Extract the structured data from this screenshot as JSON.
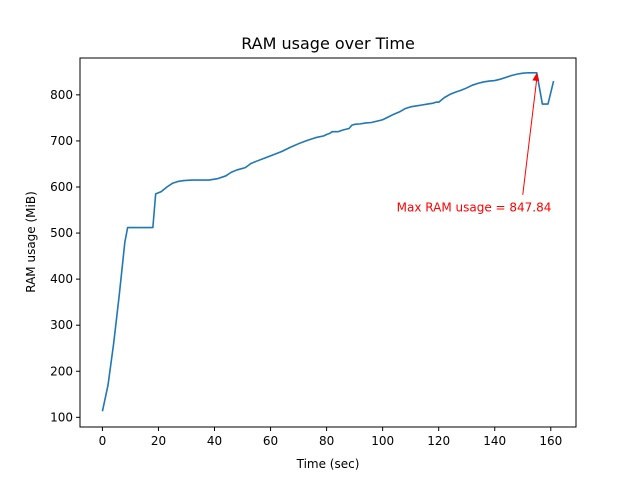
{
  "chart_data": {
    "type": "line",
    "title": "RAM usage over Time",
    "xlabel": "Time (sec)",
    "ylabel": "RAM usage (MiB)",
    "xlim": [
      -8,
      169
    ],
    "ylim": [
      79,
      880
    ],
    "xticks": [
      0,
      20,
      40,
      60,
      80,
      100,
      120,
      140,
      160
    ],
    "yticks": [
      100,
      200,
      300,
      400,
      500,
      600,
      700,
      800
    ],
    "grid": false,
    "legend": "none",
    "colors": {
      "line": "#1f77b4",
      "annotation": "#ff0000",
      "axes": "#000000"
    },
    "series": [
      {
        "x": [
          0,
          2,
          4,
          6,
          8,
          9,
          10,
          12,
          14,
          16,
          18,
          19,
          21,
          23,
          25,
          27,
          29,
          32,
          35,
          38,
          41,
          44,
          46,
          48,
          51,
          53,
          55,
          58,
          61,
          64,
          67,
          70,
          73,
          76,
          79,
          80,
          81,
          82,
          84,
          86,
          88,
          89,
          90,
          92,
          94,
          96,
          98,
          100,
          102,
          104,
          106,
          108,
          110,
          112,
          114,
          116,
          118,
          119,
          120,
          122,
          124,
          126,
          128,
          130,
          132,
          134,
          136,
          138,
          140,
          142,
          144,
          146,
          148,
          150,
          152,
          155,
          157,
          159,
          161
        ],
        "y": [
          113,
          170,
          260,
          365,
          480,
          512,
          512,
          512,
          512,
          512,
          512,
          585,
          590,
          600,
          608,
          612,
          614,
          615,
          615,
          615,
          618,
          624,
          632,
          637,
          642,
          651,
          656,
          663,
          670,
          677,
          686,
          694,
          701,
          707,
          711,
          714,
          716,
          720,
          720,
          724,
          727,
          734,
          736,
          737,
          739,
          740,
          743,
          746,
          752,
          758,
          763,
          770,
          774,
          776,
          778,
          780,
          782,
          784,
          784,
          794,
          801,
          806,
          810,
          815,
          821,
          825,
          828,
          830,
          831,
          834,
          838,
          842,
          845,
          847,
          848,
          847.84,
          780,
          780,
          830
        ]
      }
    ],
    "annotation": {
      "text": "Max RAM usage = 847.84",
      "x": 155,
      "y": 847.84,
      "text_x": 105,
      "text_y": 555
    }
  }
}
